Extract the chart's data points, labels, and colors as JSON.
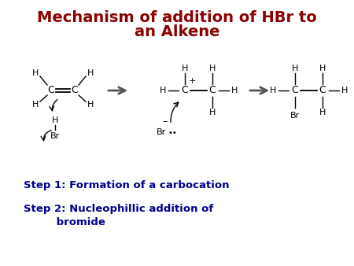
{
  "title_line1": "Mechanism of addition of HBr to",
  "title_line2": "an Alkene",
  "title_color": "#8B0000",
  "step1_text": "Step 1: Formation of a carbocation",
  "step2_text": "Step 2: Nucleophillic addition of\n              bromide",
  "step_color": "#00008B",
  "bg_color": "#FFFFFF",
  "text_color": "#000000",
  "arrow_color": "#555555"
}
